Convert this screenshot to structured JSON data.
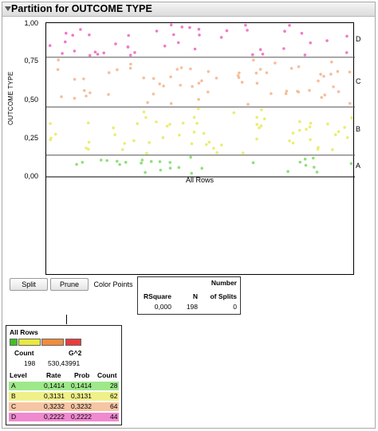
{
  "window": {
    "title": "Partition for OUTCOME TYPE"
  },
  "plot": {
    "y_axis_title": "OUTCOME TYPE",
    "y_ticks": [
      "0,00",
      "0,25",
      "0,50",
      "0,75",
      "1,00"
    ],
    "levels": [
      "A",
      "B",
      "C",
      "D"
    ],
    "x_label": "All Rows",
    "level_colors": {
      "A": "#8fe07a",
      "B": "#ecec72",
      "C": "#f4bf9b",
      "D": "#f07ac6"
    },
    "cumulative_boundaries": [
      0.1414,
      0.4545,
      0.7777
    ]
  },
  "buttons": {
    "split": "Split",
    "prune": "Prune",
    "color_points": "Color Points"
  },
  "stats": {
    "rsquare_header": "RSquare",
    "n_header": "N",
    "splits_header_1": "Number",
    "splits_header_2": "of Splits",
    "rsquare": "0,000",
    "n": "198",
    "splits": "0"
  },
  "node": {
    "title": "All Rows",
    "bar_colors": [
      "#40c020",
      "#e8e840",
      "#f08c3c",
      "#e83c3c"
    ],
    "count_label": "Count",
    "g2_label": "G^2",
    "count": "198",
    "g2": "530,43991",
    "level_header": "Level",
    "rate_header": "Rate",
    "prob_header": "Prob",
    "count_header": "Count",
    "rows": [
      {
        "level": "A",
        "rate": "0,1414",
        "prob": "0,1414",
        "count": "28",
        "color": "#9ee88a"
      },
      {
        "level": "B",
        "rate": "0,3131",
        "prob": "0,3131",
        "count": "62",
        "color": "#f0f08a"
      },
      {
        "level": "C",
        "rate": "0,3232",
        "prob": "0,3232",
        "count": "64",
        "color": "#f6c6a4"
      },
      {
        "level": "D",
        "rate": "0,2222",
        "prob": "0,2222",
        "count": "44",
        "color": "#f08ad0"
      }
    ]
  }
}
